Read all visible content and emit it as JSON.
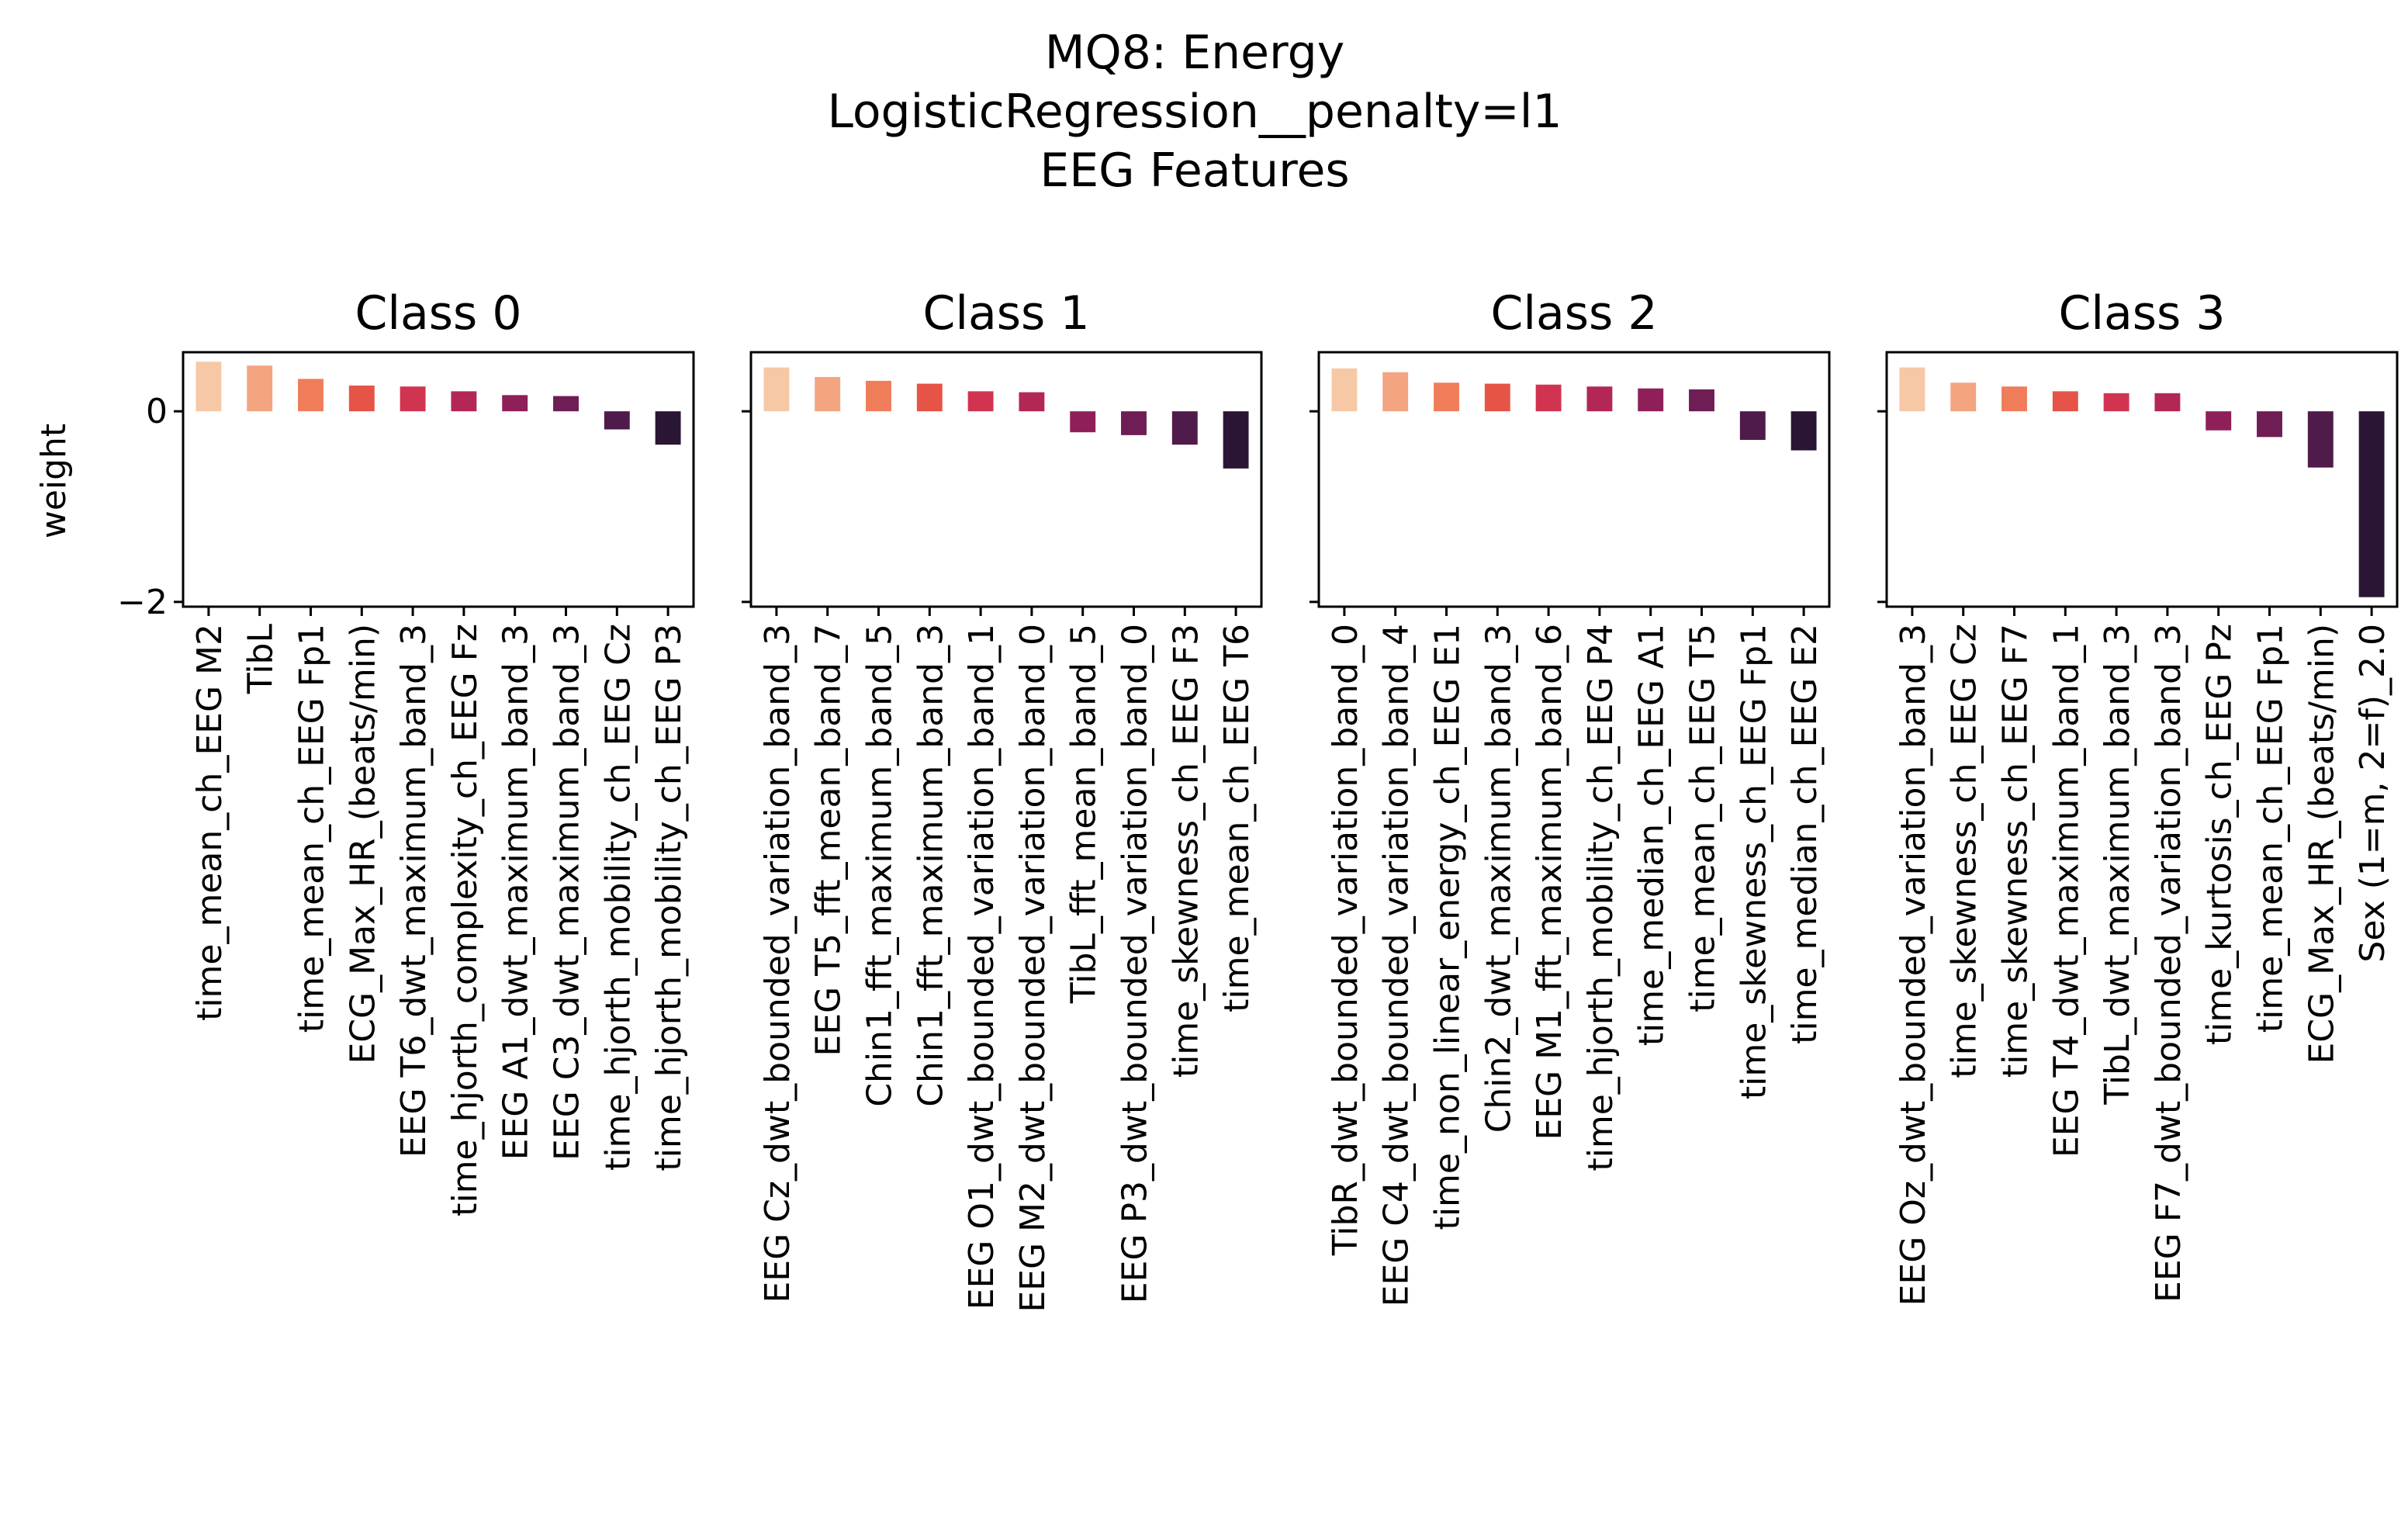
{
  "title_lines": [
    "MQ8: Energy",
    "LogisticRegression__penalty=l1",
    "EEG Features"
  ],
  "chart_data": {
    "type": "bar",
    "ylabel": "weight",
    "ylim": [
      -2.05,
      0.62
    ],
    "yticks": [
      0,
      -2
    ],
    "ytick_labels": [
      "0",
      "−2"
    ],
    "grid": false,
    "palette": [
      "#f6c8a6",
      "#f3a481",
      "#ef7d59",
      "#e55447",
      "#d13450",
      "#b32754",
      "#8f1f59",
      "#6e1d55",
      "#4f1b4a",
      "#2b1535"
    ],
    "panels": [
      {
        "title": "Class 0",
        "categories": [
          "time_mean_ch_EEG M2",
          "TibL",
          "time_mean_ch_EEG Fp1",
          "ECG_Max_HR_(beats/min)",
          "EEG T6_dwt_maximum_band_3",
          "time_hjorth_complexity_ch_EEG Fz",
          "EEG A1_dwt_maximum_band_3",
          "EEG C3_dwt_maximum_band_3",
          "time_hjorth_mobility_ch_EEG Cz",
          "time_hjorth_mobility_ch_EEG P3"
        ],
        "values": [
          0.52,
          0.48,
          0.34,
          0.27,
          0.26,
          0.21,
          0.17,
          0.16,
          -0.19,
          -0.35
        ]
      },
      {
        "title": "Class 1",
        "categories": [
          "EEG Cz_dwt_bounded_variation_band_3",
          "EEG T5_fft_mean_band_7",
          "Chin1_fft_maximum_band_5",
          "Chin1_fft_maximum_band_3",
          "EEG O1_dwt_bounded_variation_band_1",
          "EEG M2_dwt_bounded_variation_band_0",
          "TibL_fft_mean_band_5",
          "EEG P3_dwt_bounded_variation_band_0",
          "time_skewness_ch_EEG F3",
          "time_mean_ch_EEG T6"
        ],
        "values": [
          0.46,
          0.36,
          0.32,
          0.29,
          0.21,
          0.2,
          -0.22,
          -0.25,
          -0.35,
          -0.6
        ]
      },
      {
        "title": "Class 2",
        "categories": [
          "TibR_dwt_bounded_variation_band_0",
          "EEG C4_dwt_bounded_variation_band_4",
          "time_non_linear_energy_ch_EEG E1",
          "Chin2_dwt_maximum_band_3",
          "EEG M1_fft_maximum_band_6",
          "time_hjorth_mobility_ch_EEG P4",
          "time_median_ch_EEG A1",
          "time_mean_ch_EEG T5",
          "time_skewness_ch_EEG Fp1",
          "time_median_ch_EEG E2"
        ],
        "values": [
          0.45,
          0.41,
          0.3,
          0.29,
          0.28,
          0.26,
          0.24,
          0.23,
          -0.3,
          -0.41
        ]
      },
      {
        "title": "Class 3",
        "categories": [
          "EEG Oz_dwt_bounded_variation_band_3",
          "time_skewness_ch_EEG Cz",
          "time_skewness_ch_EEG F7",
          "EEG T4_dwt_maximum_band_1",
          "TibL_dwt_maximum_band_3",
          "EEG F7_dwt_bounded_variation_band_3",
          "time_kurtosis_ch_EEG Pz",
          "time_mean_ch_EEG Fp1",
          "ECG_Max_HR_(beats/min)",
          "Sex (1=m, 2=f)_2.0"
        ],
        "values": [
          0.46,
          0.3,
          0.26,
          0.21,
          0.19,
          0.19,
          -0.2,
          -0.27,
          -0.59,
          -1.95
        ]
      }
    ]
  }
}
